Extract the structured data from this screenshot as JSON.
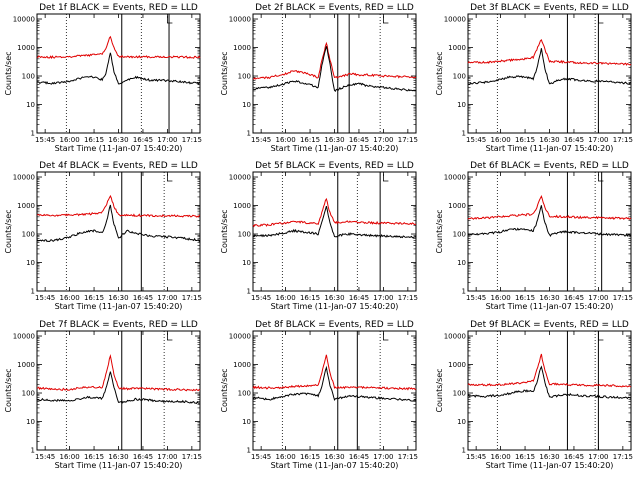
{
  "figure": {
    "xlabel": "Start Time (11-Jan-07 15:40:20)",
    "ylabel": "Counts/sec",
    "ytick_labels": [
      "1",
      "10",
      "100",
      "1000",
      "10000"
    ],
    "xtick_labels": [
      "15:45",
      "16:00",
      "16:15",
      "16:30",
      "16:45",
      "17:00",
      "17:15"
    ]
  },
  "chart_data": [
    {
      "type": "line",
      "title": "Det 1f BLACK = Events, RED = LLD",
      "yscale": "log",
      "ylim": [
        1,
        15000
      ],
      "xlim": [
        "15:40",
        "17:20"
      ],
      "x": [
        "15:40",
        "15:50",
        "16:00",
        "16:05",
        "16:10",
        "16:15",
        "16:20",
        "16:22",
        "16:25",
        "16:27",
        "16:30",
        "16:35",
        "16:40",
        "16:45",
        "16:50",
        "17:00",
        "17:10",
        "17:20"
      ],
      "series": [
        {
          "name": "LLD",
          "color": "#e00000",
          "values": [
            480,
            460,
            480,
            500,
            520,
            560,
            600,
            900,
            2400,
            1000,
            500,
            470,
            470,
            470,
            470,
            470,
            460,
            450
          ]
        },
        {
          "name": "Events",
          "color": "#000000",
          "values": [
            60,
            55,
            65,
            80,
            95,
            90,
            75,
            110,
            650,
            160,
            50,
            70,
            90,
            80,
            70,
            70,
            60,
            55
          ]
        }
      ],
      "vlines_dotted": [
        "15:58",
        "16:44"
      ],
      "vlines_solid": [
        "16:32",
        "17:01"
      ]
    },
    {
      "type": "line",
      "title": "Det 2f BLACK = Events, RED = LLD",
      "yscale": "log",
      "ylim": [
        1,
        15000
      ],
      "xlim": [
        "15:40",
        "17:20"
      ],
      "x": [
        "15:40",
        "15:50",
        "16:00",
        "16:05",
        "16:10",
        "16:15",
        "16:20",
        "16:22",
        "16:25",
        "16:27",
        "16:30",
        "16:35",
        "16:40",
        "16:45",
        "16:50",
        "17:00",
        "17:10",
        "17:20"
      ],
      "series": [
        {
          "name": "LLD",
          "color": "#e00000",
          "values": [
            80,
            90,
            120,
            150,
            140,
            110,
            90,
            300,
            1500,
            400,
            90,
            100,
            120,
            110,
            110,
            100,
            95,
            90
          ]
        },
        {
          "name": "Events",
          "color": "#000000",
          "values": [
            35,
            40,
            55,
            65,
            60,
            50,
            40,
            200,
            1100,
            300,
            30,
            40,
            50,
            55,
            45,
            40,
            35,
            30
          ]
        }
      ],
      "vlines_dotted": [
        "15:58",
        "16:58"
      ],
      "vlines_solid": [
        "16:32",
        "16:39"
      ]
    },
    {
      "type": "line",
      "title": "Det 3f BLACK = Events, RED = LLD",
      "yscale": "log",
      "ylim": [
        1,
        15000
      ],
      "xlim": [
        "15:40",
        "17:20"
      ],
      "x": [
        "15:40",
        "15:50",
        "16:00",
        "16:05",
        "16:10",
        "16:15",
        "16:20",
        "16:22",
        "16:25",
        "16:27",
        "16:30",
        "16:35",
        "16:40",
        "16:45",
        "16:50",
        "17:00",
        "17:10",
        "17:20"
      ],
      "series": [
        {
          "name": "LLD",
          "color": "#e00000",
          "values": [
            300,
            300,
            330,
            360,
            380,
            400,
            450,
            800,
            2000,
            900,
            330,
            320,
            310,
            300,
            290,
            280,
            270,
            260
          ]
        },
        {
          "name": "Events",
          "color": "#000000",
          "values": [
            55,
            60,
            75,
            90,
            95,
            90,
            80,
            150,
            900,
            200,
            50,
            70,
            80,
            75,
            70,
            65,
            60,
            55
          ]
        }
      ],
      "vlines_dotted": [
        "15:58",
        "16:58"
      ],
      "vlines_solid": [
        "16:41",
        "17:00"
      ]
    },
    {
      "type": "line",
      "title": "Det 4f BLACK = Events, RED = LLD",
      "yscale": "log",
      "ylim": [
        1,
        15000
      ],
      "xlim": [
        "15:40",
        "17:20"
      ],
      "x": [
        "15:40",
        "15:50",
        "16:00",
        "16:05",
        "16:10",
        "16:15",
        "16:20",
        "16:22",
        "16:25",
        "16:27",
        "16:30",
        "16:35",
        "16:40",
        "16:45",
        "16:50",
        "17:00",
        "17:10",
        "17:20"
      ],
      "series": [
        {
          "name": "LLD",
          "color": "#e00000",
          "values": [
            450,
            440,
            470,
            480,
            500,
            520,
            580,
            900,
            2300,
            1000,
            470,
            450,
            450,
            450,
            440,
            440,
            430,
            420
          ]
        },
        {
          "name": "Events",
          "color": "#000000",
          "values": [
            60,
            58,
            80,
            100,
            120,
            130,
            110,
            200,
            1000,
            250,
            70,
            130,
            110,
            95,
            85,
            80,
            70,
            60
          ]
        }
      ],
      "vlines_dotted": [
        "15:58",
        "16:58"
      ],
      "vlines_solid": [
        "16:32",
        "16:44"
      ]
    },
    {
      "type": "line",
      "title": "Det 5f BLACK = Events, RED = LLD",
      "yscale": "log",
      "ylim": [
        1,
        15000
      ],
      "xlim": [
        "15:40",
        "17:20"
      ],
      "x": [
        "15:40",
        "15:50",
        "16:00",
        "16:05",
        "16:10",
        "16:15",
        "16:20",
        "16:22",
        "16:25",
        "16:27",
        "16:30",
        "16:35",
        "16:40",
        "16:45",
        "16:50",
        "17:00",
        "17:10",
        "17:20"
      ],
      "series": [
        {
          "name": "LLD",
          "color": "#e00000",
          "values": [
            200,
            210,
            250,
            270,
            260,
            240,
            230,
            500,
            1800,
            600,
            250,
            260,
            270,
            260,
            250,
            240,
            235,
            230
          ]
        },
        {
          "name": "Events",
          "color": "#000000",
          "values": [
            85,
            90,
            110,
            130,
            120,
            110,
            100,
            250,
            900,
            280,
            80,
            95,
            100,
            95,
            90,
            85,
            80,
            75
          ]
        }
      ],
      "vlines_dotted": [
        "15:58",
        "16:44"
      ],
      "vlines_solid": [
        "16:32",
        "16:58"
      ]
    },
    {
      "type": "line",
      "title": "Det 6f BLACK = Events, RED = LLD",
      "yscale": "log",
      "ylim": [
        1,
        15000
      ],
      "xlim": [
        "15:40",
        "17:20"
      ],
      "x": [
        "15:40",
        "15:50",
        "16:00",
        "16:05",
        "16:10",
        "16:15",
        "16:20",
        "16:22",
        "16:25",
        "16:27",
        "16:30",
        "16:35",
        "16:40",
        "16:45",
        "16:50",
        "17:00",
        "17:10",
        "17:20"
      ],
      "series": [
        {
          "name": "LLD",
          "color": "#e00000",
          "values": [
            350,
            360,
            400,
            430,
            450,
            470,
            500,
            800,
            2200,
            900,
            420,
            410,
            400,
            390,
            380,
            370,
            360,
            350
          ]
        },
        {
          "name": "Events",
          "color": "#000000",
          "values": [
            95,
            100,
            120,
            140,
            150,
            140,
            130,
            220,
            1000,
            260,
            90,
            110,
            120,
            115,
            110,
            100,
            95,
            90
          ]
        }
      ],
      "vlines_dotted": [
        "15:58",
        "16:58"
      ],
      "vlines_solid": [
        "16:41",
        "17:02"
      ]
    },
    {
      "type": "line",
      "title": "Det 7f BLACK = Events, RED = LLD",
      "yscale": "log",
      "ylim": [
        1,
        15000
      ],
      "xlim": [
        "15:40",
        "17:20"
      ],
      "x": [
        "15:40",
        "15:50",
        "16:00",
        "16:05",
        "16:10",
        "16:15",
        "16:20",
        "16:22",
        "16:25",
        "16:27",
        "16:30",
        "16:35",
        "16:40",
        "16:45",
        "16:50",
        "17:00",
        "17:10",
        "17:20"
      ],
      "series": [
        {
          "name": "LLD",
          "color": "#e00000",
          "values": [
            150,
            140,
            130,
            150,
            160,
            160,
            160,
            400,
            2000,
            500,
            150,
            140,
            150,
            150,
            140,
            135,
            130,
            125
          ]
        },
        {
          "name": "Events",
          "color": "#000000",
          "values": [
            60,
            55,
            55,
            60,
            70,
            70,
            65,
            130,
            550,
            170,
            45,
            50,
            60,
            60,
            55,
            50,
            50,
            45
          ]
        }
      ],
      "vlines_dotted": [
        "15:58",
        "16:58"
      ],
      "vlines_solid": [
        "16:32",
        "16:44"
      ]
    },
    {
      "type": "line",
      "title": "Det 8f BLACK = Events, RED = LLD",
      "yscale": "log",
      "ylim": [
        1,
        15000
      ],
      "xlim": [
        "15:40",
        "17:20"
      ],
      "x": [
        "15:40",
        "15:50",
        "16:00",
        "16:05",
        "16:10",
        "16:15",
        "16:20",
        "16:22",
        "16:25",
        "16:27",
        "16:30",
        "16:35",
        "16:40",
        "16:45",
        "16:50",
        "17:00",
        "17:10",
        "17:20"
      ],
      "series": [
        {
          "name": "LLD",
          "color": "#e00000",
          "values": [
            160,
            150,
            160,
            170,
            175,
            180,
            185,
            450,
            2200,
            550,
            160,
            155,
            160,
            160,
            155,
            150,
            145,
            140
          ]
        },
        {
          "name": "Events",
          "color": "#000000",
          "values": [
            70,
            60,
            80,
            90,
            95,
            90,
            80,
            150,
            800,
            200,
            60,
            70,
            80,
            75,
            70,
            65,
            60,
            55
          ]
        }
      ],
      "vlines_dotted": [
        "15:58",
        "16:58"
      ],
      "vlines_solid": [
        "16:32",
        "16:44"
      ]
    },
    {
      "type": "line",
      "title": "Det 9f BLACK = Events, RED = LLD",
      "yscale": "log",
      "ylim": [
        1,
        15000
      ],
      "xlim": [
        "15:40",
        "17:20"
      ],
      "x": [
        "15:40",
        "15:50",
        "16:00",
        "16:05",
        "16:10",
        "16:15",
        "16:20",
        "16:22",
        "16:25",
        "16:27",
        "16:30",
        "16:35",
        "16:40",
        "16:45",
        "16:50",
        "17:00",
        "17:10",
        "17:20"
      ],
      "series": [
        {
          "name": "LLD",
          "color": "#e00000",
          "values": [
            200,
            190,
            200,
            210,
            220,
            240,
            260,
            600,
            2200,
            700,
            210,
            200,
            200,
            195,
            190,
            185,
            180,
            175
          ]
        },
        {
          "name": "Events",
          "color": "#000000",
          "values": [
            80,
            75,
            85,
            95,
            110,
            120,
            110,
            200,
            900,
            250,
            70,
            80,
            90,
            85,
            80,
            75,
            70,
            65
          ]
        }
      ],
      "vlines_dotted": [
        "15:58",
        "16:58"
      ],
      "vlines_solid": [
        "16:41",
        "17:00"
      ]
    }
  ]
}
